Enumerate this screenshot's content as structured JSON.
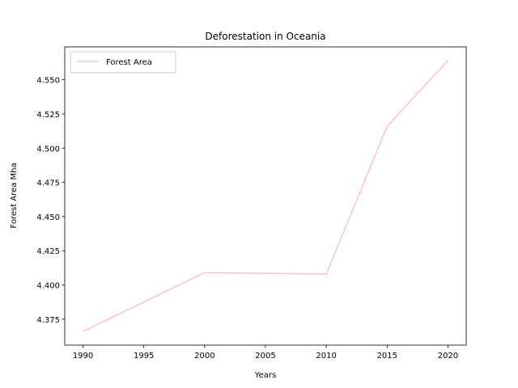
{
  "chart_data": {
    "type": "line",
    "title": "Deforestation in Oceania",
    "xlabel": "Years",
    "ylabel": "Forest Area Mha",
    "x": [
      1990,
      2000,
      2010,
      2015,
      2020
    ],
    "series": [
      {
        "name": "Forest Area",
        "values": [
          4.366,
          4.409,
          4.408,
          4.516,
          4.564
        ],
        "color": "#ffc0cb"
      }
    ],
    "xlim": [
      1988.5,
      2021.5
    ],
    "ylim": [
      4.356,
      4.574
    ],
    "xticks": [
      1990,
      1995,
      2000,
      2005,
      2010,
      2015,
      2020
    ],
    "yticks": [
      4.375,
      4.4,
      4.425,
      4.45,
      4.475,
      4.5,
      4.525,
      4.55
    ],
    "ytick_labels": [
      "4.375",
      "4.400",
      "4.425",
      "4.450",
      "4.475",
      "4.500",
      "4.525",
      "4.550"
    ],
    "grid": false,
    "legend": {
      "position": "upper-left"
    }
  }
}
